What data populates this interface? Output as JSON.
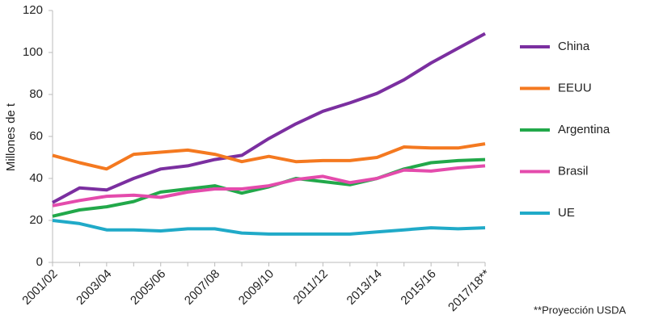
{
  "chart_data": {
    "type": "line",
    "y_label": "Millones de t",
    "note": "**Proyección USDA",
    "categories": [
      "2001/02",
      null,
      "2003/04",
      null,
      "2005/06",
      null,
      "2007/08",
      null,
      "2009/10",
      null,
      "2011/12",
      null,
      "2013/14",
      null,
      "2015/16",
      null,
      "2017/18**"
    ],
    "series": [
      {
        "name": "China",
        "color": "#7b2fa0",
        "values": [
          28.5,
          35.5,
          34.5,
          40,
          44.5,
          46,
          49,
          51,
          59,
          66,
          72,
          76,
          80.5,
          87,
          95,
          102,
          109
        ]
      },
      {
        "name": "EEUU",
        "color": "#f47920",
        "values": [
          51,
          47.5,
          44.5,
          51.5,
          52.5,
          53.5,
          51.5,
          48,
          50.5,
          48,
          48.5,
          48.5,
          50,
          55,
          54.5,
          54.5,
          56.5
        ]
      },
      {
        "name": "Argentina",
        "color": "#22a84a",
        "values": [
          22,
          25,
          26.5,
          29,
          33.5,
          35,
          36.5,
          33,
          36,
          40,
          38.5,
          37,
          40,
          44.5,
          47.5,
          48.5,
          49
        ]
      },
      {
        "name": "Brasil",
        "color": "#e44bac",
        "values": [
          27,
          29.5,
          31.5,
          32,
          31,
          33.5,
          35,
          35,
          36.5,
          39.5,
          41,
          38,
          40,
          44,
          43.5,
          45,
          46
        ]
      },
      {
        "name": "UE",
        "color": "#20aac8",
        "values": [
          20,
          18.5,
          15.5,
          15.5,
          15,
          16,
          16,
          14,
          13.5,
          13.5,
          13.5,
          13.5,
          14.5,
          15.5,
          16.5,
          16,
          16.5
        ]
      }
    ],
    "ylim": [
      0,
      120
    ],
    "yticks": [
      0,
      20,
      40,
      60,
      80,
      100,
      120
    ],
    "grid": false,
    "legend": "right"
  }
}
